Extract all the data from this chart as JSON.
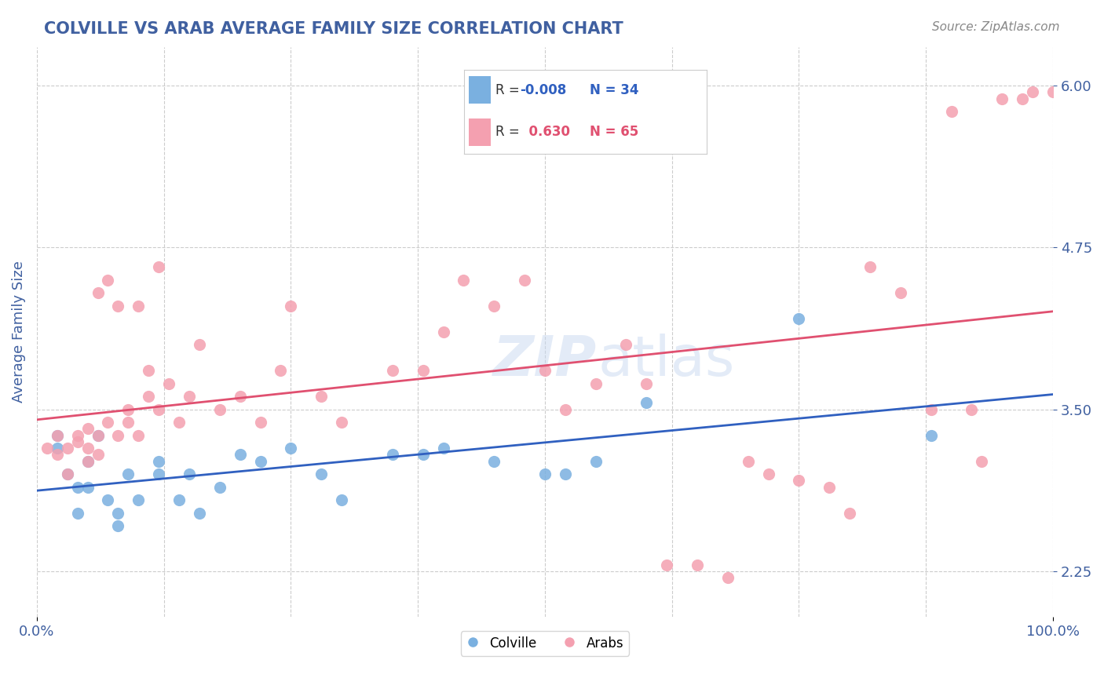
{
  "title": "COLVILLE VS ARAB AVERAGE FAMILY SIZE CORRELATION CHART",
  "source": "Source: ZipAtlas.com",
  "xlabel": "",
  "ylabel": "Average Family Size",
  "xlim": [
    0,
    100
  ],
  "ylim": [
    1.9,
    6.3
  ],
  "yticks": [
    2.25,
    3.5,
    4.75,
    6.0
  ],
  "xticks": [
    0,
    100
  ],
  "xtick_labels": [
    "0.0%",
    "100.0%"
  ],
  "colville_color": "#7ab0e0",
  "arab_color": "#f4a0b0",
  "colville_line_color": "#3060c0",
  "arab_line_color": "#e05070",
  "legend_r_colville": "-0.008",
  "legend_n_colville": "34",
  "legend_r_arab": "0.630",
  "legend_n_arab": "65",
  "background_color": "#ffffff",
  "grid_color": "#cccccc",
  "title_color": "#4060a0",
  "axis_label_color": "#4060a0",
  "colville_x": [
    2,
    2,
    3,
    4,
    4,
    5,
    5,
    6,
    7,
    8,
    8,
    9,
    10,
    12,
    12,
    14,
    15,
    16,
    18,
    20,
    22,
    25,
    28,
    30,
    35,
    38,
    40,
    45,
    50,
    52,
    55,
    60,
    75,
    88
  ],
  "colville_y": [
    3.3,
    3.2,
    3.0,
    2.9,
    2.7,
    3.1,
    2.9,
    3.3,
    2.8,
    2.7,
    2.6,
    3.0,
    2.8,
    3.1,
    3.0,
    2.8,
    3.0,
    2.7,
    2.9,
    3.15,
    3.1,
    3.2,
    3.0,
    2.8,
    3.15,
    3.15,
    3.2,
    3.1,
    3.0,
    3.0,
    3.1,
    3.55,
    4.2,
    3.3
  ],
  "arab_x": [
    1,
    2,
    2,
    3,
    3,
    4,
    4,
    5,
    5,
    5,
    6,
    6,
    6,
    7,
    7,
    8,
    8,
    9,
    9,
    10,
    10,
    11,
    11,
    12,
    12,
    13,
    14,
    15,
    16,
    18,
    20,
    22,
    24,
    25,
    28,
    30,
    35,
    38,
    40,
    42,
    45,
    48,
    50,
    52,
    55,
    58,
    60,
    62,
    65,
    68,
    70,
    72,
    75,
    78,
    80,
    82,
    85,
    88,
    90,
    92,
    93,
    95,
    97,
    98,
    100
  ],
  "arab_y": [
    3.2,
    3.3,
    3.15,
    3.0,
    3.2,
    3.25,
    3.3,
    3.1,
    3.2,
    3.35,
    3.3,
    3.15,
    4.4,
    3.4,
    4.5,
    3.3,
    4.3,
    3.5,
    3.4,
    3.3,
    4.3,
    3.6,
    3.8,
    3.5,
    4.6,
    3.7,
    3.4,
    3.6,
    4.0,
    3.5,
    3.6,
    3.4,
    3.8,
    4.3,
    3.6,
    3.4,
    3.8,
    3.8,
    4.1,
    4.5,
    4.3,
    4.5,
    3.8,
    3.5,
    3.7,
    4.0,
    3.7,
    2.3,
    2.3,
    2.2,
    3.1,
    3.0,
    2.95,
    2.9,
    2.7,
    4.6,
    4.4,
    3.5,
    5.8,
    3.5,
    3.1,
    5.9,
    5.9,
    5.95,
    5.95
  ]
}
